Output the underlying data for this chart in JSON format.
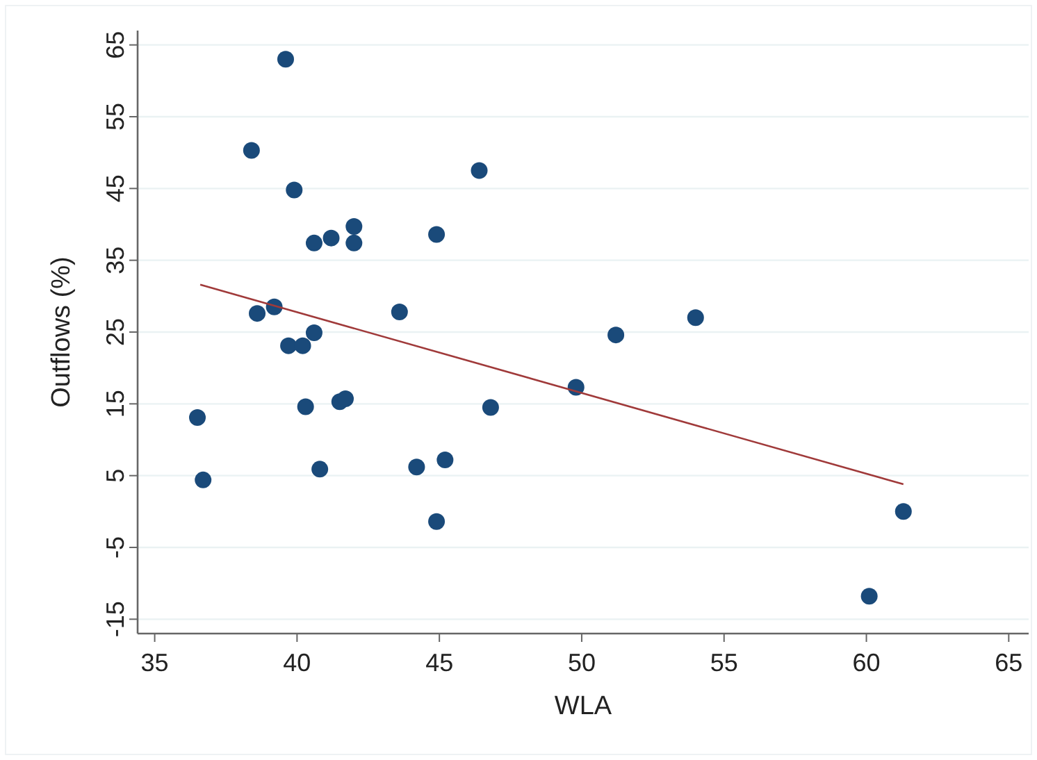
{
  "chart_data": {
    "type": "scatter",
    "xlabel": "WLA",
    "ylabel": "Outflows (%)",
    "xlim": [
      34.4,
      65.7
    ],
    "ylim": [
      -17,
      67
    ],
    "xticks": [
      35,
      40,
      45,
      50,
      55,
      60,
      65
    ],
    "yticks": [
      65,
      55,
      45,
      35,
      25,
      15,
      5,
      -5,
      -15
    ],
    "grid": "y",
    "series": [
      {
        "type": "scatter",
        "color": "#1a4a7a",
        "marker": "circle",
        "x": [
          36.5,
          36.7,
          38.4,
          38.6,
          39.2,
          39.6,
          39.7,
          39.9,
          40.2,
          40.6,
          40.6,
          41.2,
          42.0,
          42.0,
          43.6,
          44.9,
          46.4,
          40.3,
          41.5,
          41.7,
          40.8,
          44.2,
          45.2,
          44.9,
          46.8,
          49.8,
          51.2,
          54.0,
          60.1,
          61.3
        ],
        "values": [
          13.1,
          4.4,
          50.3,
          27.6,
          28.5,
          63.0,
          23.1,
          44.8,
          23.1,
          37.4,
          24.9,
          38.1,
          39.7,
          37.4,
          27.8,
          38.6,
          47.5,
          14.6,
          15.3,
          15.7,
          5.9,
          6.2,
          7.2,
          -1.4,
          14.5,
          17.3,
          24.6,
          27.0,
          -11.8,
          0.0
        ]
      },
      {
        "type": "line",
        "color": "#a03a3a",
        "marker": "none",
        "x": [
          36.6,
          61.3
        ],
        "values": [
          31.6,
          3.8
        ]
      }
    ]
  }
}
